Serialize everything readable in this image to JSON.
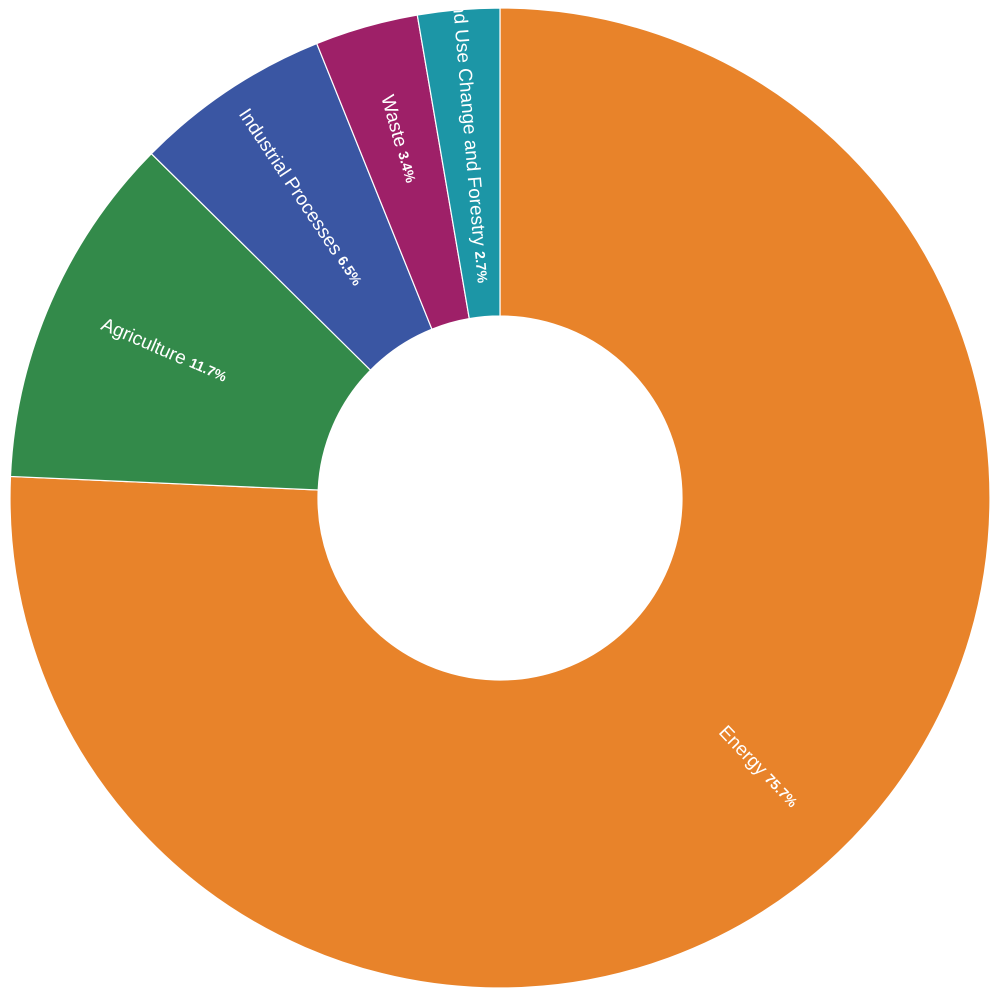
{
  "chart_data": {
    "type": "pie",
    "donut": true,
    "start_angle_deg": 0,
    "direction": "clockwise",
    "slices": [
      {
        "label": "Energy",
        "value": 75.7,
        "value_label": "75.7%",
        "color": "#E8832A"
      },
      {
        "label": "Agriculture",
        "value": 11.7,
        "value_label": "11.7%",
        "color": "#338A4A"
      },
      {
        "label": "Industrial Processes",
        "value": 6.5,
        "value_label": "6.5%",
        "color": "#3A56A3"
      },
      {
        "label": "Waste",
        "value": 3.4,
        "value_label": "3.4%",
        "color": "#9E2068"
      },
      {
        "label": "Land Use Change and Forestry",
        "value": 2.7,
        "value_label": "2.7%",
        "color": "#1C96A6"
      }
    ]
  }
}
